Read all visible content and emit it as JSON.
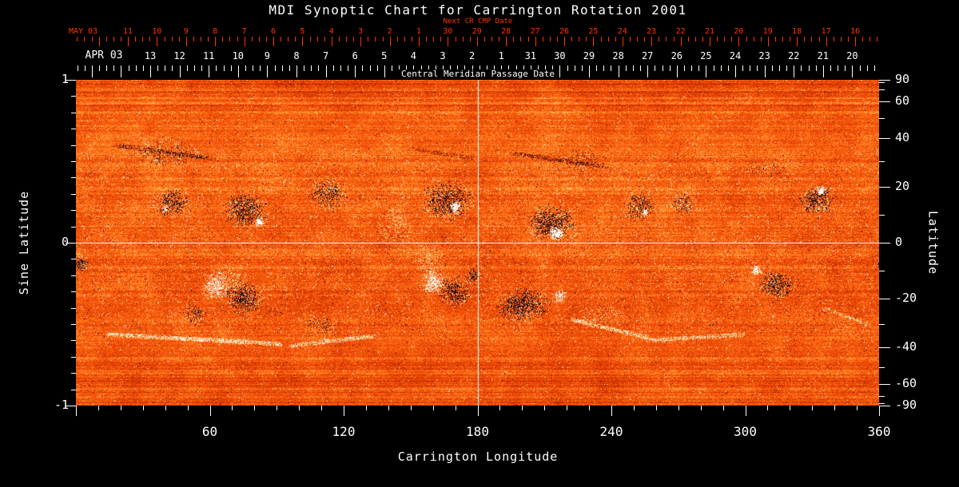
{
  "title": "MDI Synoptic Chart for Carrington Rotation 2001",
  "colors": {
    "background": "#000000",
    "axis_red": "#ff3400",
    "axis_white": "#ffffff"
  },
  "axes": {
    "next_cr": {
      "title": "Next CR CMP Date",
      "month": "MAY 03",
      "days": [
        "11",
        "10",
        "9",
        "8",
        "7",
        "6",
        "5",
        "4",
        "3",
        "2",
        "1",
        "30",
        "29",
        "28",
        "27",
        "26",
        "25",
        "24",
        "23",
        "22",
        "21",
        "20",
        "19",
        "18",
        "17",
        "16"
      ]
    },
    "cmp": {
      "title": "Central Meridian Passage Date",
      "month": "APR 03",
      "days": [
        "13",
        "12",
        "11",
        "10",
        "9",
        "8",
        "7",
        "6",
        "5",
        "4",
        "3",
        "2",
        "1",
        "31",
        "30",
        "29",
        "28",
        "27",
        "26",
        "25",
        "24",
        "23",
        "22",
        "21",
        "20"
      ]
    },
    "longitude": {
      "title": "Carrington Longitude",
      "range_deg": [
        0,
        360
      ],
      "labeled_ticks": [
        60,
        120,
        180,
        240,
        300,
        360
      ],
      "minor_step_deg": 10
    },
    "sine_latitude": {
      "title": "Sine Latitude",
      "range": [
        -1,
        1
      ],
      "labeled_ticks": [
        "1",
        "0",
        "-1"
      ],
      "minor_step": 0.1
    },
    "latitude": {
      "title": "Latitude",
      "labeled_ticks": [
        90,
        60,
        40,
        20,
        0,
        -20,
        -40,
        -60,
        -90
      ],
      "tick_step_deg": 10
    }
  },
  "chart_data": {
    "type": "heatmap",
    "description": "Full-Sun photospheric magnetic field synoptic map (SOHO/MDI magnetogram) for Carrington rotation 2001. Granular orange/red background is the quiet-Sun field; dark navy speckle clusters are negative-polarity active regions; solid white patches are strong positive-polarity regions concentrated in the activity belts near sine latitude +/-0.2 to +/-0.4; white crosshair lines mark Carrington longitude 180 deg and sine latitude 0.",
    "x_range_deg": [
      0,
      360
    ],
    "sine_lat_range": [
      -1,
      1
    ],
    "crosshair": {
      "longitude_deg": 180,
      "sine_latitude": 0
    },
    "palette_stops": [
      [
        -1.5,
        "#000008"
      ],
      [
        -0.8,
        "#0d1340"
      ],
      [
        -0.45,
        "#2a0e20"
      ],
      [
        -0.18,
        "#7f1800"
      ],
      [
        0.05,
        "#c62a00"
      ],
      [
        0.3,
        "#ee4a06"
      ],
      [
        0.5,
        "#ff6a14"
      ],
      [
        0.7,
        "#ffa63c"
      ],
      [
        0.9,
        "#ffd97e"
      ],
      [
        1.15,
        "#ffffff"
      ]
    ],
    "noise": {
      "seed": 20011,
      "base": 0.4,
      "grain": 0.4
    },
    "active_regions": [
      {
        "lon": 43,
        "slat": 0.25,
        "rlon": 9,
        "rslat": 0.1,
        "pol": -1,
        "str": 1.0,
        "den": 0.4
      },
      {
        "lon": 40,
        "slat": 0.21,
        "rlon": 2,
        "rslat": 0.03,
        "pol": 1,
        "str": 1.3,
        "den": 0.55
      },
      {
        "lon": 76,
        "slat": 0.2,
        "rlon": 12,
        "rslat": 0.13,
        "pol": -1,
        "str": 1.0,
        "den": 0.45
      },
      {
        "lon": 82,
        "slat": 0.13,
        "rlon": 2.6,
        "rslat": 0.04,
        "pol": 1,
        "str": 1.7,
        "den": 0.95
      },
      {
        "lon": 113,
        "slat": 0.3,
        "rlon": 10,
        "rslat": 0.11,
        "pol": -1,
        "str": 0.9,
        "den": 0.35
      },
      {
        "lon": 166,
        "slat": 0.26,
        "rlon": 13,
        "rslat": 0.14,
        "pol": -1,
        "str": 1.0,
        "den": 0.45
      },
      {
        "lon": 170,
        "slat": 0.22,
        "rlon": 3,
        "rslat": 0.05,
        "pol": 1,
        "str": 1.7,
        "den": 0.95
      },
      {
        "lon": 213,
        "slat": 0.12,
        "rlon": 13,
        "rslat": 0.13,
        "pol": -1,
        "str": 1.0,
        "den": 0.48
      },
      {
        "lon": 215,
        "slat": 0.06,
        "rlon": 3.6,
        "rslat": 0.05,
        "pol": 1,
        "str": 1.7,
        "den": 0.95
      },
      {
        "lon": 252,
        "slat": 0.22,
        "rlon": 8,
        "rslat": 0.1,
        "pol": -1,
        "str": 0.9,
        "den": 0.38
      },
      {
        "lon": 255,
        "slat": 0.19,
        "rlon": 2,
        "rslat": 0.03,
        "pol": 1,
        "str": 1.5,
        "den": 0.8
      },
      {
        "lon": 272,
        "slat": 0.24,
        "rlon": 7,
        "rslat": 0.09,
        "pol": -1,
        "str": 0.7,
        "den": 0.28
      },
      {
        "lon": 332,
        "slat": 0.27,
        "rlon": 10,
        "rslat": 0.11,
        "pol": -1,
        "str": 1.0,
        "den": 0.45
      },
      {
        "lon": 334,
        "slat": 0.32,
        "rlon": 2.6,
        "rslat": 0.04,
        "pol": 1,
        "str": 1.5,
        "den": 0.85
      },
      {
        "lon": 40,
        "slat": 0.55,
        "rlon": 18,
        "rslat": 0.1,
        "pol": -1,
        "str": 0.5,
        "den": 0.2
      },
      {
        "lon": 225,
        "slat": 0.5,
        "rlon": 15,
        "rslat": 0.09,
        "pol": -1,
        "str": 0.45,
        "den": 0.16
      },
      {
        "lon": 310,
        "slat": 0.46,
        "rlon": 12,
        "rslat": 0.08,
        "pol": -1,
        "str": 0.4,
        "den": 0.14
      },
      {
        "lon": 63,
        "slat": -0.26,
        "rlon": 7,
        "rslat": 0.1,
        "pol": 1,
        "str": 1.3,
        "den": 0.55
      },
      {
        "lon": 75,
        "slat": -0.34,
        "rlon": 10,
        "rslat": 0.12,
        "pol": -1,
        "str": 1.0,
        "den": 0.45
      },
      {
        "lon": 53,
        "slat": -0.44,
        "rlon": 6,
        "rslat": 0.07,
        "pol": -1,
        "str": 0.8,
        "den": 0.35
      },
      {
        "lon": 110,
        "slat": -0.5,
        "rlon": 8,
        "rslat": 0.08,
        "pol": -1,
        "str": 0.6,
        "den": 0.22
      },
      {
        "lon": 160,
        "slat": -0.24,
        "rlon": 6,
        "rslat": 0.09,
        "pol": 1,
        "str": 1.3,
        "den": 0.55
      },
      {
        "lon": 170,
        "slat": -0.3,
        "rlon": 9,
        "rslat": 0.11,
        "pol": -1,
        "str": 1.0,
        "den": 0.45
      },
      {
        "lon": 178,
        "slat": -0.2,
        "rlon": 4,
        "rslat": 0.06,
        "pol": -1,
        "str": 1.0,
        "den": 0.45
      },
      {
        "lon": 200,
        "slat": -0.38,
        "rlon": 14,
        "rslat": 0.12,
        "pol": -1,
        "str": 1.0,
        "den": 0.48
      },
      {
        "lon": 217,
        "slat": -0.33,
        "rlon": 4,
        "rslat": 0.05,
        "pol": 1,
        "str": 1.2,
        "den": 0.6
      },
      {
        "lon": 305,
        "slat": -0.17,
        "rlon": 3,
        "rslat": 0.04,
        "pol": 1,
        "str": 1.4,
        "den": 0.8
      },
      {
        "lon": 314,
        "slat": -0.26,
        "rlon": 9,
        "rslat": 0.11,
        "pol": -1,
        "str": 1.0,
        "den": 0.45
      },
      {
        "lon": 2,
        "slat": -0.13,
        "rlon": 4,
        "rslat": 0.06,
        "pol": -1,
        "str": 1.0,
        "den": 0.5
      },
      {
        "lon": 158,
        "slat": -0.1,
        "rlon": 8,
        "rslat": 0.12,
        "pol": 0,
        "str": 0,
        "den": 0.5
      },
      {
        "lon": 143,
        "slat": 0.1,
        "rlon": 9,
        "rslat": 0.14,
        "pol": 0,
        "str": 0,
        "den": 0.4
      },
      {
        "lon": 68,
        "slat": -0.22,
        "rlon": 10,
        "rslat": 0.12,
        "pol": 0,
        "str": 0,
        "den": 0.45
      },
      {
        "lon": 235,
        "slat": -0.45,
        "rlon": 12,
        "rslat": 0.08,
        "pol": 0,
        "str": 0,
        "den": 0.35
      }
    ],
    "filaments": [
      {
        "a": [
          14,
          -0.56
        ],
        "b": [
          92,
          -0.62
        ],
        "amp": 0.5,
        "den": 2.0
      },
      {
        "a": [
          96,
          -0.63
        ],
        "b": [
          134,
          -0.57
        ],
        "amp": 0.5,
        "den": 1.6
      },
      {
        "a": [
          222,
          -0.47
        ],
        "b": [
          256,
          -0.58
        ],
        "amp": 0.5,
        "den": 1.8
      },
      {
        "a": [
          256,
          -0.6
        ],
        "b": [
          300,
          -0.56
        ],
        "amp": 0.45,
        "den": 1.5
      },
      {
        "a": [
          335,
          -0.4
        ],
        "b": [
          355,
          -0.5
        ],
        "amp": 0.4,
        "den": 1.2
      },
      {
        "a": [
          18,
          0.6
        ],
        "b": [
          60,
          0.52
        ],
        "amp": -0.55,
        "den": 1.6
      },
      {
        "a": [
          150,
          0.58
        ],
        "b": [
          178,
          0.52
        ],
        "amp": -0.4,
        "den": 1.2
      },
      {
        "a": [
          196,
          0.55
        ],
        "b": [
          238,
          0.47
        ],
        "amp": -0.5,
        "den": 1.4
      }
    ]
  }
}
